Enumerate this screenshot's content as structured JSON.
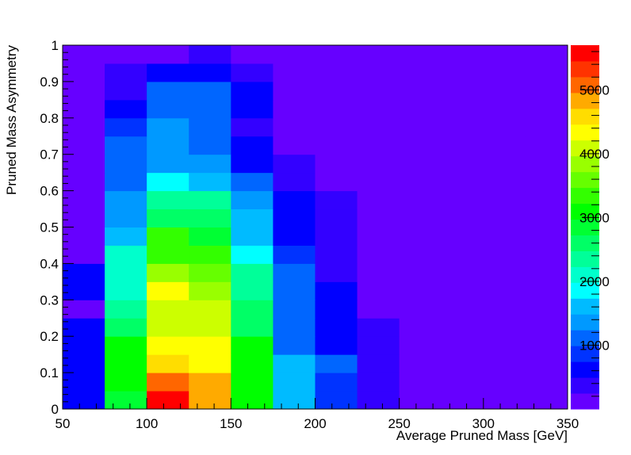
{
  "chart_data": {
    "type": "heatmap",
    "xlabel": "Average Pruned Mass [GeV]",
    "ylabel": "Pruned Mass Asymmetry",
    "xlim": [
      50,
      350
    ],
    "ylim": [
      0,
      1
    ],
    "x_ticks": [
      "50",
      "100",
      "150",
      "200",
      "250",
      "300",
      "350"
    ],
    "y_ticks": [
      "0",
      "0.1",
      "0.2",
      "0.3",
      "0.4",
      "0.5",
      "0.6",
      "0.7",
      "0.8",
      "0.9",
      "1"
    ],
    "x_bin_edges": [
      50,
      75,
      100,
      125,
      150,
      175,
      200,
      225,
      250,
      275,
      300,
      325,
      350
    ],
    "y_bin_edges": [
      0,
      0.05,
      0.1,
      0.15,
      0.2,
      0.25,
      0.3,
      0.35,
      0.4,
      0.45,
      0.5,
      0.55,
      0.6,
      0.65,
      0.7,
      0.75,
      0.8,
      0.85,
      0.9,
      0.95,
      1.0
    ],
    "z_max": 5700,
    "colorbar_ticks": [
      {
        "label": "1000",
        "value": 1000
      },
      {
        "label": "2000",
        "value": 2000
      },
      {
        "label": "3000",
        "value": 3000
      },
      {
        "label": "4000",
        "value": 4000
      },
      {
        "label": "5000",
        "value": 5000
      }
    ],
    "palette": [
      "#6600ff",
      "#3300ff",
      "#0000ff",
      "#0033ff",
      "#0066ff",
      "#0099ff",
      "#00bbff",
      "#00ffff",
      "#00ffcc",
      "#00ff99",
      "#00ff66",
      "#00ff33",
      "#00ff00",
      "#33ff00",
      "#66ff00",
      "#99ff00",
      "#ccff00",
      "#ffff00",
      "#ffdd00",
      "#ffaa00",
      "#ff6600",
      "#ff3300",
      "#ff0000"
    ],
    "values": [
      [
        700,
        2800,
        5500,
        4800,
        3000,
        1700,
        800,
        400,
        0,
        0,
        0,
        0
      ],
      [
        700,
        3000,
        5000,
        4800,
        3000,
        1700,
        800,
        400,
        0,
        0,
        0,
        0
      ],
      [
        700,
        3000,
        4700,
        4400,
        3000,
        1700,
        1000,
        400,
        0,
        0,
        0,
        0
      ],
      [
        700,
        3100,
        4300,
        4400,
        3000,
        1200,
        700,
        400,
        0,
        0,
        0,
        0
      ],
      [
        700,
        2700,
        4200,
        4100,
        2700,
        1200,
        700,
        400,
        0,
        0,
        0,
        0
      ],
      [
        200,
        2400,
        4200,
        4100,
        2700,
        1200,
        700,
        0,
        0,
        0,
        0,
        0
      ],
      [
        700,
        2200,
        4400,
        3900,
        2400,
        1100,
        700,
        0,
        0,
        0,
        0,
        0
      ],
      [
        700,
        2200,
        3800,
        3700,
        2300,
        1000,
        400,
        0,
        0,
        0,
        0,
        0
      ],
      [
        0,
        2000,
        3400,
        3400,
        1800,
        900,
        400,
        0,
        0,
        0,
        0,
        0
      ],
      [
        0,
        1500,
        3300,
        2900,
        1500,
        700,
        400,
        0,
        0,
        0,
        0,
        0
      ],
      [
        0,
        1300,
        2700,
        2700,
        1500,
        700,
        400,
        0,
        0,
        0,
        0,
        0
      ],
      [
        0,
        1300,
        2300,
        2300,
        1300,
        700,
        400,
        0,
        0,
        0,
        0,
        0
      ],
      [
        0,
        1000,
        1800,
        1500,
        1000,
        400,
        0,
        0,
        0,
        0,
        0,
        0
      ],
      [
        0,
        1000,
        1300,
        1300,
        700,
        400,
        0,
        0,
        0,
        0,
        0,
        0
      ],
      [
        0,
        1000,
        1300,
        1000,
        700,
        0,
        0,
        0,
        0,
        0,
        0,
        0
      ],
      [
        0,
        800,
        1300,
        1000,
        400,
        0,
        0,
        0,
        0,
        0,
        0,
        0
      ],
      [
        0,
        700,
        1000,
        1000,
        700,
        0,
        0,
        0,
        0,
        0,
        0,
        0
      ],
      [
        0,
        400,
        1000,
        1000,
        700,
        0,
        0,
        0,
        0,
        0,
        0,
        0
      ],
      [
        0,
        400,
        700,
        700,
        400,
        0,
        0,
        0,
        0,
        0,
        0,
        0
      ],
      [
        0,
        0,
        0,
        400,
        0,
        0,
        0,
        0,
        0,
        0,
        0,
        0
      ]
    ]
  }
}
